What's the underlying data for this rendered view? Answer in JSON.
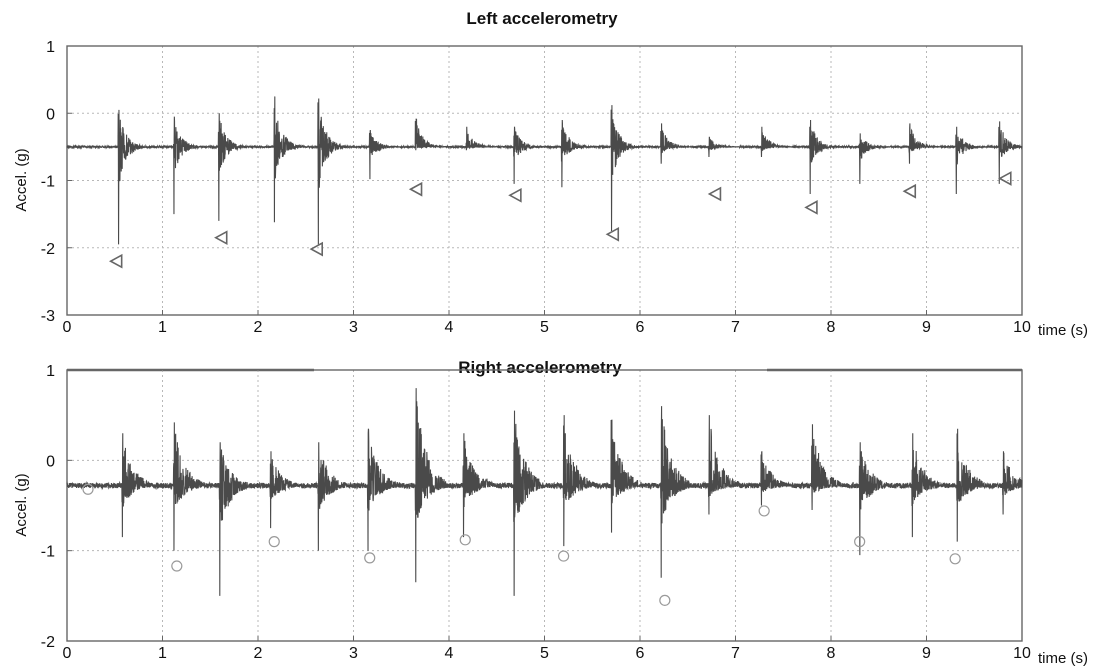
{
  "chart_data": [
    {
      "type": "line",
      "title": "Left accelerometry",
      "xlabel": "time (s)",
      "ylabel": "Accel. (g)",
      "xlim": [
        0,
        10
      ],
      "ylim": [
        -3,
        1
      ],
      "xticks": [
        0,
        1,
        2,
        3,
        4,
        5,
        6,
        7,
        8,
        9,
        10
      ],
      "yticks": [
        1,
        0,
        -1,
        -2,
        -3
      ],
      "grid": true,
      "baseline": -0.5,
      "series": [
        {
          "name": "",
          "events": [
            {
              "t": 0.54,
              "max": 0.05,
              "min": -1.95
            },
            {
              "t": 1.12,
              "max": -0.05,
              "min": -1.5
            },
            {
              "t": 1.59,
              "max": 0.0,
              "min": -1.6
            },
            {
              "t": 2.17,
              "max": 0.25,
              "min": -1.62
            },
            {
              "t": 2.63,
              "max": 0.22,
              "min": -1.95
            },
            {
              "t": 3.17,
              "max": -0.25,
              "min": -0.98
            },
            {
              "t": 3.65,
              "max": -0.08,
              "min": -0.55
            },
            {
              "t": 4.18,
              "max": -0.2,
              "min": -0.55
            },
            {
              "t": 4.68,
              "max": -0.2,
              "min": -1.05
            },
            {
              "t": 5.18,
              "max": -0.1,
              "min": -1.1
            },
            {
              "t": 5.7,
              "max": 0.12,
              "min": -1.75
            },
            {
              "t": 6.22,
              "max": -0.15,
              "min": -0.75
            },
            {
              "t": 6.72,
              "max": -0.35,
              "min": -0.65
            },
            {
              "t": 7.27,
              "max": -0.2,
              "min": -0.65
            },
            {
              "t": 7.78,
              "max": -0.1,
              "min": -1.2
            },
            {
              "t": 8.3,
              "max": -0.3,
              "min": -1.05
            },
            {
              "t": 8.82,
              "max": -0.15,
              "min": -0.75
            },
            {
              "t": 9.31,
              "max": -0.2,
              "min": -1.2
            },
            {
              "t": 9.76,
              "max": -0.12,
              "min": -1.05
            }
          ],
          "markers": [
            {
              "t": 0.52,
              "y": -2.2
            },
            {
              "t": 1.62,
              "y": -1.85
            },
            {
              "t": 2.62,
              "y": -2.02
            },
            {
              "t": 3.66,
              "y": -1.13
            },
            {
              "t": 4.7,
              "y": -1.22
            },
            {
              "t": 5.72,
              "y": -1.8
            },
            {
              "t": 6.79,
              "y": -1.2
            },
            {
              "t": 7.8,
              "y": -1.4
            },
            {
              "t": 8.83,
              "y": -1.16
            },
            {
              "t": 9.83,
              "y": -0.97
            }
          ]
        }
      ]
    },
    {
      "type": "line",
      "title": "Right accelerometry",
      "xlabel": "time (s)",
      "ylabel": "Accel. (g)",
      "xlim": [
        0,
        10
      ],
      "ylim": [
        -2,
        1
      ],
      "xticks": [
        0,
        1,
        2,
        3,
        4,
        5,
        6,
        7,
        8,
        9,
        10
      ],
      "yticks": [
        1,
        0,
        -1,
        -2
      ],
      "grid": true,
      "baseline": -0.28,
      "series": [
        {
          "name": "",
          "events": [
            {
              "t": 0.58,
              "max": 0.3,
              "min": -0.85
            },
            {
              "t": 1.12,
              "max": 0.42,
              "min": -1.0
            },
            {
              "t": 1.6,
              "max": 0.2,
              "min": -1.5
            },
            {
              "t": 2.13,
              "max": 0.1,
              "min": -0.75
            },
            {
              "t": 2.63,
              "max": 0.2,
              "min": -1.0
            },
            {
              "t": 3.15,
              "max": 0.35,
              "min": -1.0
            },
            {
              "t": 3.65,
              "max": 0.8,
              "min": -1.35
            },
            {
              "t": 4.15,
              "max": 0.3,
              "min": -0.85
            },
            {
              "t": 4.68,
              "max": 0.55,
              "min": -1.5
            },
            {
              "t": 5.2,
              "max": 0.5,
              "min": -0.95
            },
            {
              "t": 5.7,
              "max": 0.45,
              "min": -0.8
            },
            {
              "t": 6.22,
              "max": 0.6,
              "min": -1.3
            },
            {
              "t": 6.72,
              "max": 0.5,
              "min": -0.6
            },
            {
              "t": 7.27,
              "max": 0.1,
              "min": -0.5
            },
            {
              "t": 7.8,
              "max": 0.4,
              "min": -0.55
            },
            {
              "t": 8.3,
              "max": 0.2,
              "min": -1.05
            },
            {
              "t": 8.85,
              "max": 0.3,
              "min": -0.85
            },
            {
              "t": 9.32,
              "max": 0.35,
              "min": -0.9
            },
            {
              "t": 9.8,
              "max": 0.1,
              "min": -0.6
            }
          ],
          "markers": [
            {
              "t": 0.22,
              "y": -0.32
            },
            {
              "t": 1.15,
              "y": -1.17
            },
            {
              "t": 2.17,
              "y": -0.9
            },
            {
              "t": 3.17,
              "y": -1.08
            },
            {
              "t": 4.17,
              "y": -0.88
            },
            {
              "t": 5.2,
              "y": -1.06
            },
            {
              "t": 6.26,
              "y": -1.55
            },
            {
              "t": 7.3,
              "y": -0.56
            },
            {
              "t": 8.3,
              "y": -0.9
            },
            {
              "t": 9.3,
              "y": -1.09
            }
          ]
        }
      ]
    }
  ]
}
